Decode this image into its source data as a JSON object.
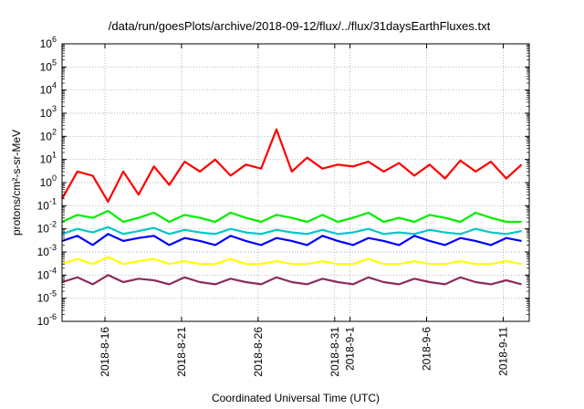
{
  "chart_data": {
    "type": "line",
    "title": "/data/run/goesPlots/archive/2018-09-12/flux/../flux/31daysEarthFluxes.txt",
    "xlabel": "Coordinated Universal Time (UTC)",
    "ylabel": "protons/cm²-s-sr-MeV",
    "yscale": "log",
    "ylim": [
      1e-06,
      1000000.0
    ],
    "xlim": [
      0,
      30.5
    ],
    "grid": true,
    "x_ticks": [
      {
        "x": 2.8,
        "label": "2018-8-16"
      },
      {
        "x": 7.8,
        "label": "2018-8-21"
      },
      {
        "x": 12.8,
        "label": "2018-8-26"
      },
      {
        "x": 17.8,
        "label": "2018-8-31"
      },
      {
        "x": 18.8,
        "label": "2018-9-1"
      },
      {
        "x": 23.8,
        "label": "2018-9-6"
      },
      {
        "x": 28.8,
        "label": "2018-9-11"
      }
    ],
    "y_ticks": [
      {
        "value": 1e-06,
        "base": "10",
        "exp": "-6"
      },
      {
        "value": 1e-05,
        "base": "10",
        "exp": "-5"
      },
      {
        "value": 0.0001,
        "base": "10",
        "exp": "-4"
      },
      {
        "value": 0.001,
        "base": "10",
        "exp": "-3"
      },
      {
        "value": 0.01,
        "base": "10",
        "exp": "-2"
      },
      {
        "value": 0.1,
        "base": "10",
        "exp": "-1"
      },
      {
        "value": 1,
        "base": "10",
        "exp": "0"
      },
      {
        "value": 10,
        "base": "10",
        "exp": "1"
      },
      {
        "value": 100,
        "base": "10",
        "exp": "2"
      },
      {
        "value": 1000.0,
        "base": "10",
        "exp": "3"
      },
      {
        "value": 10000.0,
        "base": "10",
        "exp": "4"
      },
      {
        "value": 100000.0,
        "base": "10",
        "exp": "5"
      },
      {
        "value": 1000000.0,
        "base": "10",
        "exp": "6"
      }
    ],
    "series": [
      {
        "color": "#ff0000",
        "x": [
          0,
          1,
          2,
          3,
          4,
          5,
          6,
          7,
          8,
          9,
          10,
          11,
          12,
          13,
          14,
          15,
          16,
          17,
          18,
          19,
          20,
          21,
          22,
          23,
          24,
          25,
          26,
          27,
          28,
          29,
          30
        ],
        "values": [
          0.2,
          3,
          2,
          0.15,
          3,
          0.3,
          5,
          0.8,
          8,
          3,
          10,
          2,
          6,
          4,
          200,
          3,
          12,
          4,
          6,
          5,
          8,
          3,
          7,
          2,
          6,
          1.5,
          9,
          3,
          8,
          1.5,
          6
        ]
      },
      {
        "color": "#00ee00",
        "x": [
          0,
          1,
          2,
          3,
          4,
          5,
          6,
          7,
          8,
          9,
          10,
          11,
          12,
          13,
          14,
          15,
          16,
          17,
          18,
          19,
          20,
          21,
          22,
          23,
          24,
          25,
          26,
          27,
          28,
          29,
          30
        ],
        "values": [
          0.02,
          0.04,
          0.03,
          0.06,
          0.02,
          0.03,
          0.05,
          0.02,
          0.04,
          0.03,
          0.02,
          0.05,
          0.03,
          0.02,
          0.04,
          0.03,
          0.02,
          0.04,
          0.02,
          0.03,
          0.05,
          0.02,
          0.03,
          0.02,
          0.04,
          0.03,
          0.02,
          0.05,
          0.03,
          0.02,
          0.02
        ]
      },
      {
        "color": "#00c8c8",
        "x": [
          0,
          1,
          2,
          3,
          4,
          5,
          6,
          7,
          8,
          9,
          10,
          11,
          12,
          13,
          14,
          15,
          16,
          17,
          18,
          19,
          20,
          21,
          22,
          23,
          24,
          25,
          26,
          27,
          28,
          29,
          30
        ],
        "values": [
          0.006,
          0.01,
          0.007,
          0.012,
          0.006,
          0.008,
          0.011,
          0.006,
          0.009,
          0.007,
          0.006,
          0.01,
          0.007,
          0.006,
          0.009,
          0.007,
          0.006,
          0.009,
          0.006,
          0.007,
          0.01,
          0.006,
          0.007,
          0.006,
          0.009,
          0.007,
          0.006,
          0.01,
          0.007,
          0.006,
          0.008
        ]
      },
      {
        "color": "#0000ff",
        "x": [
          0,
          1,
          2,
          3,
          4,
          5,
          6,
          7,
          8,
          9,
          10,
          11,
          12,
          13,
          14,
          15,
          16,
          17,
          18,
          19,
          20,
          21,
          22,
          23,
          24,
          25,
          26,
          27,
          28,
          29,
          30
        ],
        "values": [
          0.003,
          0.005,
          0.002,
          0.006,
          0.003,
          0.004,
          0.005,
          0.002,
          0.004,
          0.003,
          0.002,
          0.005,
          0.003,
          0.002,
          0.004,
          0.003,
          0.002,
          0.005,
          0.003,
          0.002,
          0.004,
          0.003,
          0.002,
          0.005,
          0.003,
          0.002,
          0.004,
          0.003,
          0.002,
          0.004,
          0.003
        ]
      },
      {
        "color": "#ffff00",
        "x": [
          0,
          1,
          2,
          3,
          4,
          5,
          6,
          7,
          8,
          9,
          10,
          11,
          12,
          13,
          14,
          15,
          16,
          17,
          18,
          19,
          20,
          21,
          22,
          23,
          24,
          25,
          26,
          27,
          28,
          29,
          30
        ],
        "values": [
          0.0003,
          0.0005,
          0.0003,
          0.0006,
          0.0003,
          0.0004,
          0.0005,
          0.0003,
          0.0004,
          0.0003,
          0.0003,
          0.0005,
          0.0003,
          0.0003,
          0.0004,
          0.0003,
          0.0003,
          0.0004,
          0.0003,
          0.0003,
          0.0005,
          0.0003,
          0.0003,
          0.0004,
          0.0003,
          0.0003,
          0.0004,
          0.0003,
          0.0003,
          0.0004,
          0.0003
        ]
      },
      {
        "color": "#8b2c5e",
        "x": [
          0,
          1,
          2,
          3,
          4,
          5,
          6,
          7,
          8,
          9,
          10,
          11,
          12,
          13,
          14,
          15,
          16,
          17,
          18,
          19,
          20,
          21,
          22,
          23,
          24,
          25,
          26,
          27,
          28,
          29,
          30
        ],
        "values": [
          5e-05,
          8e-05,
          4e-05,
          0.0001,
          5e-05,
          7e-05,
          6e-05,
          4e-05,
          8e-05,
          5e-05,
          4e-05,
          7e-05,
          5e-05,
          4e-05,
          8e-05,
          5e-05,
          4e-05,
          7e-05,
          5e-05,
          4e-05,
          8e-05,
          5e-05,
          4e-05,
          7e-05,
          5e-05,
          4e-05,
          8e-05,
          5e-05,
          4e-05,
          6e-05,
          4e-05
        ]
      }
    ]
  }
}
